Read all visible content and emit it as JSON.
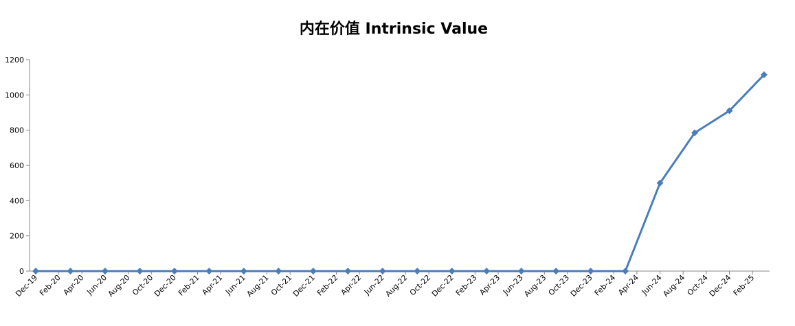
{
  "chart_data": {
    "type": "line",
    "title": "内在价值 Intrinsic Value",
    "x": [
      "Dec-19",
      "Mar-20",
      "Jun-20",
      "Sep-20",
      "Dec-20",
      "Mar-21",
      "Jun-21",
      "Sep-21",
      "Dec-21",
      "Mar-22",
      "Jun-22",
      "Sep-22",
      "Dec-22",
      "Mar-23",
      "Jun-23",
      "Sep-23",
      "Dec-23",
      "Mar-24",
      "Jun-24",
      "Sep-24",
      "Dec-24",
      "Mar-25"
    ],
    "series": [
      {
        "color": "#4a7ebb",
        "values": [
          0,
          0,
          0,
          0,
          0,
          0,
          0,
          0,
          0,
          0,
          0,
          0,
          0,
          0,
          0,
          0,
          0,
          0,
          500,
          785,
          910,
          1115
        ]
      }
    ],
    "xlim": [
      "Dec-19",
      "Mar-25"
    ],
    "xticks": [
      "Dec-19",
      "Feb-20",
      "Apr-20",
      "Jun-20",
      "Aug-20",
      "Oct-20",
      "Dec-20",
      "Feb-21",
      "Apr-21",
      "Jun-21",
      "Aug-21",
      "Oct-21",
      "Dec-21",
      "Feb-22",
      "Apr-22",
      "Jun-22",
      "Aug-22",
      "Oct-22",
      "Dec-22",
      "Feb-23",
      "Apr-23",
      "Jun-23",
      "Aug-23",
      "Oct-23",
      "Dec-23",
      "Feb-24",
      "Apr-24",
      "Jun-24",
      "Aug-24",
      "Oct-24",
      "Dec-24",
      "Feb-25"
    ],
    "ylim": [
      0,
      1200
    ],
    "yticks": [
      0,
      200,
      400,
      600,
      800,
      1000,
      1200
    ]
  }
}
